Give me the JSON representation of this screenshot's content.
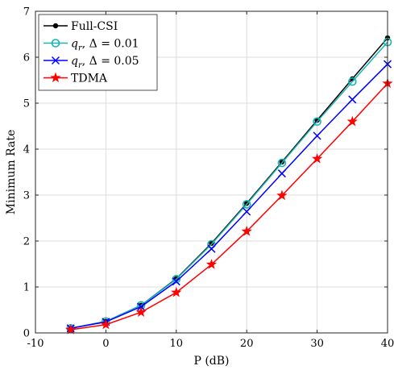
{
  "chart_data": {
    "type": "line",
    "title": "",
    "xlabel": "P (dB)",
    "ylabel": "Minimum Rate",
    "xlim": [
      -10,
      40
    ],
    "ylim": [
      0,
      7
    ],
    "xticks": [
      "-10",
      "0",
      "10",
      "20",
      "30",
      "40"
    ],
    "yticks": [
      "0",
      "1",
      "2",
      "3",
      "4",
      "5",
      "6",
      "7"
    ],
    "grid": true,
    "legend_position": "top-left",
    "x": [
      -5,
      0,
      5,
      10,
      15,
      20,
      25,
      30,
      35,
      40
    ],
    "series": [
      {
        "name": "Full-CSI",
        "color": "#000000",
        "marker": "dot",
        "values": [
          0.1,
          0.25,
          0.6,
          1.18,
          1.95,
          2.82,
          3.72,
          4.63,
          5.53,
          6.42
        ]
      },
      {
        "name": "q_r, Δ = 0.01",
        "name_parts": {
          "var": "q",
          "sub": "r",
          "rest": ", Δ = 0.01"
        },
        "color": "#1ab3b3",
        "marker": "circle",
        "values": [
          0.1,
          0.25,
          0.6,
          1.17,
          1.93,
          2.8,
          3.7,
          4.6,
          5.47,
          6.33
        ]
      },
      {
        "name": "q_r, Δ = 0.05",
        "name_parts": {
          "var": "q",
          "sub": "r",
          "rest": ", Δ = 0.05"
        },
        "color": "#0000ff",
        "marker": "x",
        "values": [
          0.1,
          0.24,
          0.57,
          1.12,
          1.83,
          2.64,
          3.47,
          4.29,
          5.08,
          5.85
        ]
      },
      {
        "name": "TDMA",
        "color": "#ff0000",
        "marker": "star",
        "values": [
          0.07,
          0.18,
          0.45,
          0.88,
          1.49,
          2.21,
          2.99,
          3.79,
          4.6,
          5.43
        ]
      }
    ]
  }
}
